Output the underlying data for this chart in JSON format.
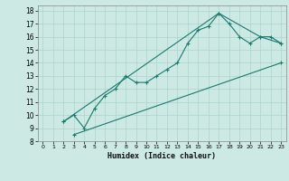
{
  "title": "",
  "xlabel": "Humidex (Indice chaleur)",
  "bg_color": "#cce9e4",
  "line_color": "#1a7a6e",
  "grid_color": "#aad4cc",
  "xlim": [
    -0.5,
    23.5
  ],
  "ylim": [
    8,
    18.4
  ],
  "xticks": [
    0,
    1,
    2,
    3,
    4,
    5,
    6,
    7,
    8,
    9,
    10,
    11,
    12,
    13,
    14,
    15,
    16,
    17,
    18,
    19,
    20,
    21,
    22,
    23
  ],
  "yticks": [
    8,
    9,
    10,
    11,
    12,
    13,
    14,
    15,
    16,
    17,
    18
  ],
  "line1_x": [
    2,
    3,
    4,
    5,
    6,
    7,
    8,
    9,
    10,
    11,
    12,
    13,
    14,
    15,
    16,
    17,
    18,
    19,
    20,
    21,
    22,
    23
  ],
  "line1_y": [
    9.5,
    10.0,
    9.0,
    10.5,
    11.5,
    12.0,
    13.0,
    12.5,
    12.5,
    13.0,
    13.5,
    14.0,
    15.5,
    16.5,
    16.8,
    17.8,
    17.0,
    16.0,
    15.5,
    16.0,
    16.0,
    15.5
  ],
  "line2_x": [
    2,
    17,
    21,
    23
  ],
  "line2_y": [
    9.5,
    17.8,
    16.0,
    15.5
  ],
  "line3_x": [
    3,
    23
  ],
  "line3_y": [
    8.5,
    14.0
  ]
}
